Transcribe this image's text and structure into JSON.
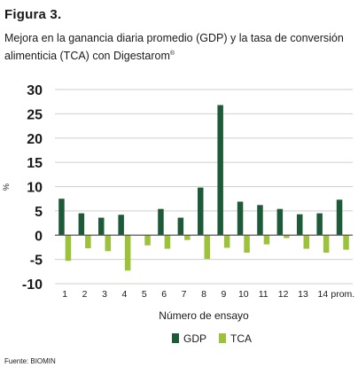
{
  "figure_label": "Figura 3.",
  "subtitle": "Mejora en la ganancia diaria promedio (GDP) y la tasa de conversión alimenticia (TCA) con Digestarom",
  "subtitle_mark": "®",
  "source": "Fuente: BIOMIN",
  "colors": {
    "gdp": "#1d5a37",
    "tca": "#9cc23a",
    "grid": "#cfcfcf",
    "axis": "#555555"
  },
  "chart_data": {
    "type": "bar",
    "xlabel": "Número de ensayo",
    "ylabel": "%",
    "ylim": [
      -10,
      30
    ],
    "yticks": [
      -10,
      -5,
      0,
      5,
      10,
      15,
      20,
      25,
      30
    ],
    "grid": true,
    "legend_position": "bottom-center",
    "categories": [
      "1",
      "2",
      "3",
      "4",
      "5",
      "6",
      "7",
      "8",
      "9",
      "10",
      "11",
      "12",
      "13",
      "14",
      "prom."
    ],
    "series": [
      {
        "name": "GDP",
        "values": [
          7.5,
          4.5,
          3.6,
          4.2,
          null,
          5.4,
          3.6,
          9.8,
          26.8,
          6.9,
          6.2,
          5.4,
          4.3,
          4.5,
          7.3
        ]
      },
      {
        "name": "TCA",
        "values": [
          -5.3,
          -2.7,
          -3.3,
          -7.3,
          -2.1,
          -2.8,
          -1.0,
          -4.9,
          -2.6,
          -3.6,
          -1.9,
          -0.6,
          -2.8,
          -3.6,
          -3.0
        ]
      }
    ]
  }
}
